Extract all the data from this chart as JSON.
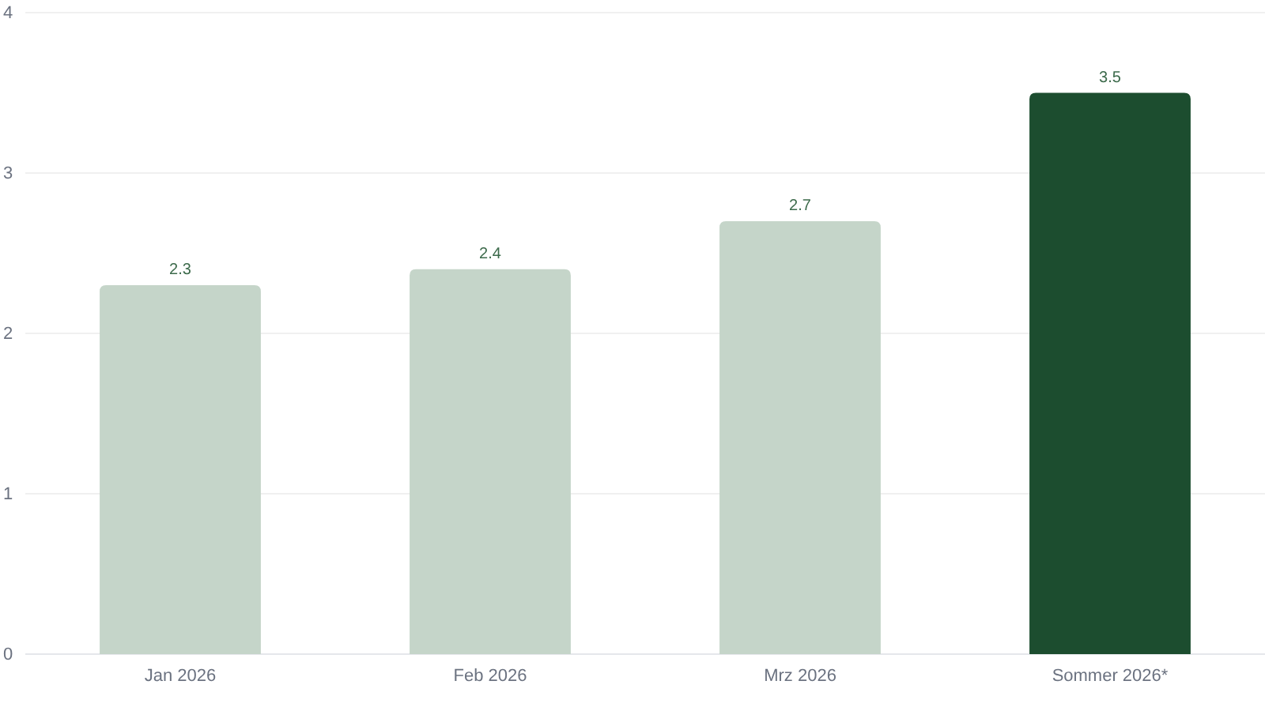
{
  "chart_data": {
    "type": "bar",
    "categories": [
      "Jan 2026",
      "Feb 2026",
      "Mrz 2026",
      "Sommer 2026*"
    ],
    "values": [
      2.3,
      2.4,
      2.7,
      3.5
    ],
    "colors": [
      "#c5d5c9",
      "#c5d5c9",
      "#c5d5c9",
      "#1c4d2f"
    ],
    "ylim": [
      0,
      4
    ],
    "yticks": [
      0,
      1,
      2,
      3,
      4
    ],
    "grid": "y",
    "data_labels": true
  }
}
